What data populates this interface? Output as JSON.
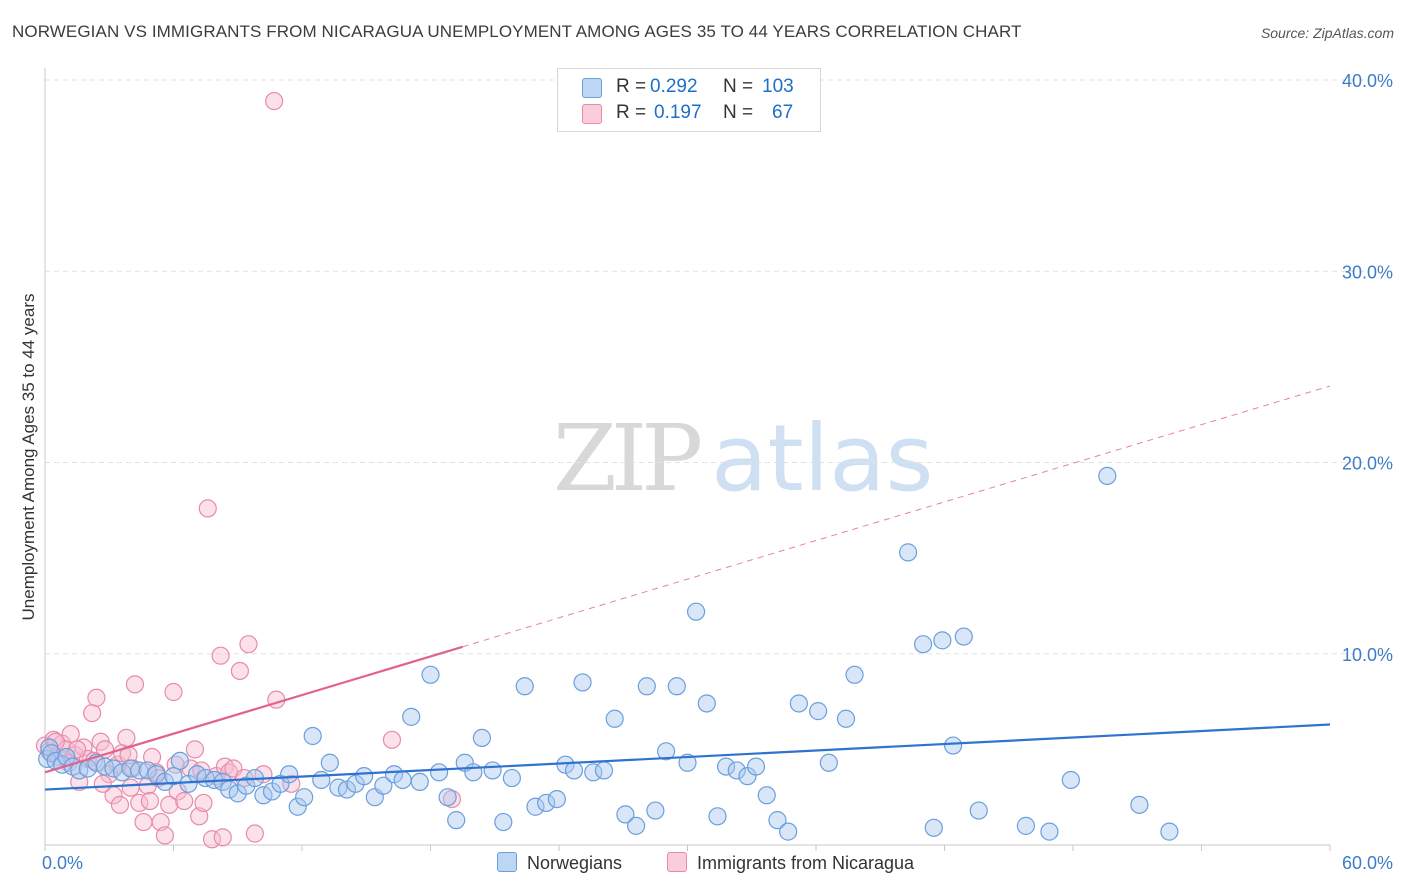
{
  "title": "NORWEGIAN VS IMMIGRANTS FROM NICARAGUA UNEMPLOYMENT AMONG AGES 35 TO 44 YEARS CORRELATION CHART",
  "source": "Source: ZipAtlas.com",
  "watermark": {
    "zip": "ZIP",
    "atlas": "atlas"
  },
  "legend": {
    "rows": [
      {
        "r_label": "R =",
        "r_value": "0.292",
        "n_label": "N =",
        "n_value": "103"
      },
      {
        "r_label": "R =",
        "r_value": "0.197",
        "n_label": "N =",
        "n_value": "67"
      }
    ]
  },
  "colors": {
    "blue_fill": "#a9c8f0",
    "blue_stroke": "#6b9fdc",
    "blue_line": "#2f73cf",
    "pink_fill": "#f5bcd0",
    "pink_stroke": "#ea8aab",
    "pink_line": "#e0628e",
    "tick_text": "#3d7cc9",
    "grid": "#e2e2e2"
  },
  "chart_data": {
    "type": "scatter",
    "title": "NORWEGIAN VS IMMIGRANTS FROM NICARAGUA UNEMPLOYMENT AMONG AGES 35 TO 44 YEARS CORRELATION CHART",
    "xlabel": "",
    "ylabel": "Unemployment Among Ages 35 to 44 years",
    "xlim": [
      0,
      60
    ],
    "ylim": [
      0,
      40
    ],
    "x_tick_labels": [
      "0.0%",
      "60.0%"
    ],
    "y_ticks": [
      10,
      20,
      30,
      40
    ],
    "y_tick_labels": [
      "10.0%",
      "20.0%",
      "30.0%",
      "40.0%"
    ],
    "grid": true,
    "legend_position": "top-center",
    "series": [
      {
        "name": "Norwegians",
        "r": 0.292,
        "n": 103,
        "trend": {
          "x0": 0,
          "y0": 2.9,
          "x1": 60,
          "y1": 6.3,
          "style": "solid"
        },
        "points": [
          [
            0.1,
            4.5
          ],
          [
            0.2,
            5.1
          ],
          [
            0.3,
            4.8
          ],
          [
            0.5,
            4.4
          ],
          [
            0.8,
            4.2
          ],
          [
            1.0,
            4.6
          ],
          [
            1.3,
            4.1
          ],
          [
            1.6,
            3.9
          ],
          [
            2.0,
            4.0
          ],
          [
            2.4,
            4.3
          ],
          [
            2.8,
            4.1
          ],
          [
            3.2,
            4.0
          ],
          [
            3.6,
            3.8
          ],
          [
            4.0,
            4.0
          ],
          [
            4.4,
            3.9
          ],
          [
            4.8,
            3.9
          ],
          [
            5.2,
            3.7
          ],
          [
            5.6,
            3.3
          ],
          [
            6.0,
            3.6
          ],
          [
            6.3,
            4.4
          ],
          [
            6.7,
            3.2
          ],
          [
            7.1,
            3.7
          ],
          [
            7.5,
            3.5
          ],
          [
            7.9,
            3.4
          ],
          [
            8.3,
            3.3
          ],
          [
            8.6,
            2.9
          ],
          [
            9.0,
            2.7
          ],
          [
            9.4,
            3.1
          ],
          [
            9.8,
            3.5
          ],
          [
            10.2,
            2.6
          ],
          [
            10.6,
            2.8
          ],
          [
            11.0,
            3.2
          ],
          [
            11.4,
            3.7
          ],
          [
            11.8,
            2.0
          ],
          [
            12.1,
            2.5
          ],
          [
            12.5,
            5.7
          ],
          [
            12.9,
            3.4
          ],
          [
            13.3,
            4.3
          ],
          [
            13.7,
            3.0
          ],
          [
            14.1,
            2.9
          ],
          [
            14.5,
            3.2
          ],
          [
            14.9,
            3.6
          ],
          [
            15.4,
            2.5
          ],
          [
            15.8,
            3.1
          ],
          [
            16.3,
            3.7
          ],
          [
            16.7,
            3.4
          ],
          [
            17.1,
            6.7
          ],
          [
            17.5,
            3.3
          ],
          [
            18.0,
            8.9
          ],
          [
            18.4,
            3.8
          ],
          [
            18.8,
            2.5
          ],
          [
            19.2,
            1.3
          ],
          [
            19.6,
            4.3
          ],
          [
            20.0,
            3.8
          ],
          [
            20.4,
            5.6
          ],
          [
            20.9,
            3.9
          ],
          [
            21.4,
            1.2
          ],
          [
            21.8,
            3.5
          ],
          [
            22.4,
            8.3
          ],
          [
            22.9,
            2.0
          ],
          [
            23.4,
            2.2
          ],
          [
            23.9,
            2.4
          ],
          [
            24.3,
            4.2
          ],
          [
            24.7,
            3.9
          ],
          [
            25.1,
            8.5
          ],
          [
            25.6,
            3.8
          ],
          [
            26.1,
            3.9
          ],
          [
            26.6,
            6.6
          ],
          [
            27.1,
            1.6
          ],
          [
            27.6,
            1.0
          ],
          [
            28.1,
            8.3
          ],
          [
            28.5,
            1.8
          ],
          [
            29.0,
            4.9
          ],
          [
            29.5,
            8.3
          ],
          [
            30.0,
            4.3
          ],
          [
            30.4,
            12.2
          ],
          [
            30.9,
            7.4
          ],
          [
            31.4,
            1.5
          ],
          [
            31.8,
            4.1
          ],
          [
            32.3,
            3.9
          ],
          [
            32.8,
            3.6
          ],
          [
            33.2,
            4.1
          ],
          [
            33.7,
            2.6
          ],
          [
            34.2,
            1.3
          ],
          [
            34.7,
            0.7
          ],
          [
            35.2,
            7.4
          ],
          [
            36.1,
            7.0
          ],
          [
            36.6,
            4.3
          ],
          [
            37.4,
            6.6
          ],
          [
            37.8,
            8.9
          ],
          [
            40.3,
            15.3
          ],
          [
            41.0,
            10.5
          ],
          [
            41.5,
            0.9
          ],
          [
            41.9,
            10.7
          ],
          [
            42.4,
            5.2
          ],
          [
            42.9,
            10.9
          ],
          [
            43.6,
            1.8
          ],
          [
            45.8,
            1.0
          ],
          [
            46.9,
            0.7
          ],
          [
            47.9,
            3.4
          ],
          [
            49.6,
            19.3
          ],
          [
            51.1,
            2.1
          ],
          [
            52.5,
            0.7
          ]
        ]
      },
      {
        "name": "Immigrants from Nicaragua",
        "r": 0.197,
        "n": 67,
        "trend": {
          "x0": 0,
          "y0": 3.8,
          "x1": 60,
          "y1": 24.0,
          "solid_until_x": 19.5,
          "style": "solid-then-dashed"
        },
        "points": [
          [
            0.0,
            5.2
          ],
          [
            0.2,
            4.9
          ],
          [
            0.4,
            5.5
          ],
          [
            0.6,
            4.6
          ],
          [
            0.8,
            5.3
          ],
          [
            1.0,
            5.0
          ],
          [
            1.2,
            5.8
          ],
          [
            1.4,
            4.7
          ],
          [
            1.6,
            3.3
          ],
          [
            1.8,
            5.1
          ],
          [
            2.0,
            4.5
          ],
          [
            2.2,
            6.9
          ],
          [
            2.4,
            7.7
          ],
          [
            2.6,
            5.4
          ],
          [
            2.8,
            5.0
          ],
          [
            3.0,
            3.7
          ],
          [
            3.2,
            2.6
          ],
          [
            3.4,
            4.2
          ],
          [
            3.6,
            4.8
          ],
          [
            3.8,
            5.6
          ],
          [
            4.0,
            3.0
          ],
          [
            4.2,
            8.4
          ],
          [
            4.4,
            2.2
          ],
          [
            4.6,
            1.2
          ],
          [
            4.8,
            3.1
          ],
          [
            5.0,
            4.6
          ],
          [
            5.2,
            3.8
          ],
          [
            5.4,
            1.2
          ],
          [
            5.6,
            0.5
          ],
          [
            5.8,
            2.1
          ],
          [
            6.0,
            8.0
          ],
          [
            6.2,
            2.8
          ],
          [
            6.5,
            2.3
          ],
          [
            6.8,
            4.0
          ],
          [
            7.0,
            5.0
          ],
          [
            7.2,
            1.5
          ],
          [
            7.4,
            2.2
          ],
          [
            7.6,
            17.6
          ],
          [
            7.8,
            0.3
          ],
          [
            8.0,
            3.6
          ],
          [
            8.2,
            9.9
          ],
          [
            8.4,
            4.1
          ],
          [
            8.6,
            3.8
          ],
          [
            8.8,
            4.0
          ],
          [
            9.1,
            9.1
          ],
          [
            9.3,
            3.5
          ],
          [
            9.5,
            10.5
          ],
          [
            9.8,
            0.6
          ],
          [
            10.2,
            3.7
          ],
          [
            10.8,
            7.6
          ],
          [
            11.5,
            3.2
          ],
          [
            16.2,
            5.5
          ],
          [
            19.0,
            2.4
          ],
          [
            1.1,
            4.3
          ],
          [
            2.3,
            4.4
          ],
          [
            3.5,
            2.1
          ],
          [
            4.1,
            4.0
          ],
          [
            5.3,
            3.5
          ],
          [
            6.1,
            4.2
          ],
          [
            7.3,
            3.9
          ],
          [
            0.5,
            5.4
          ],
          [
            1.5,
            5.0
          ],
          [
            2.7,
            3.2
          ],
          [
            3.9,
            4.7
          ],
          [
            4.9,
            2.3
          ],
          [
            8.3,
            0.4
          ],
          [
            10.7,
            38.9
          ]
        ]
      }
    ]
  }
}
